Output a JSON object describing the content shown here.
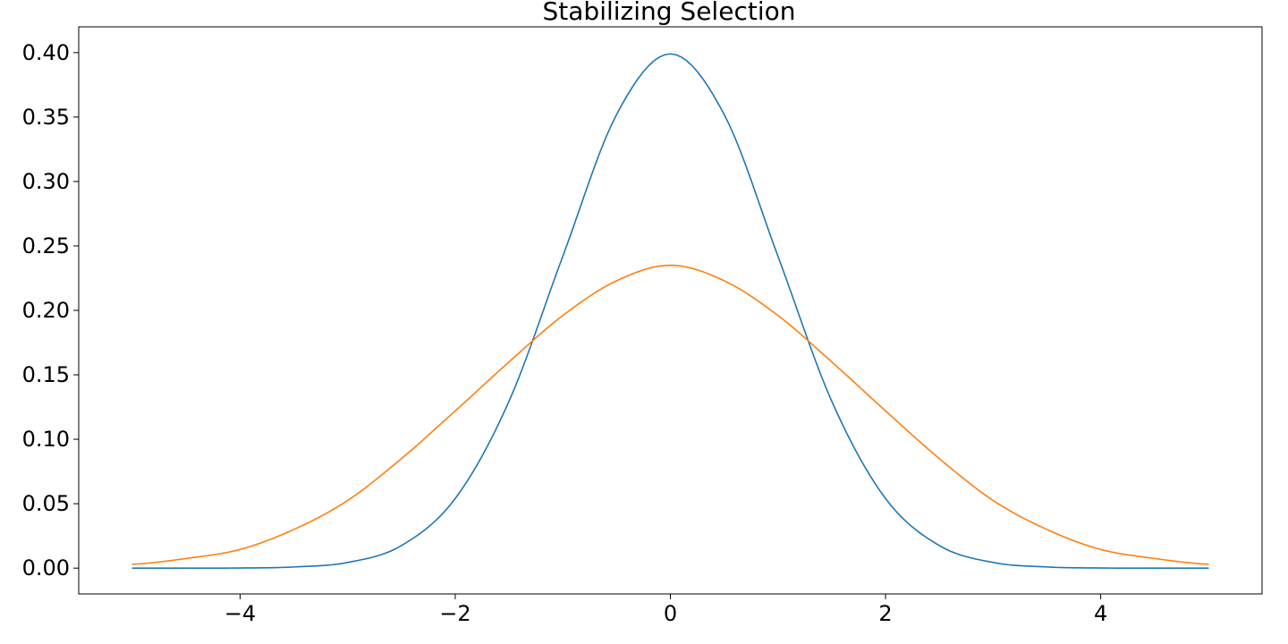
{
  "chart_data": {
    "type": "line",
    "title": "Stabilizing Selection",
    "xlabel": "",
    "ylabel": "",
    "xlim": [
      -5.5,
      5.5
    ],
    "ylim": [
      -0.02,
      0.42
    ],
    "grid": false,
    "x_ticks": [
      -4,
      -2,
      0,
      2,
      4
    ],
    "x_tick_labels": [
      "−4",
      "−2",
      "0",
      "2",
      "4"
    ],
    "y_ticks": [
      0.0,
      0.05,
      0.1,
      0.15,
      0.2,
      0.25,
      0.3,
      0.35,
      0.4
    ],
    "y_tick_labels": [
      "0.00",
      "0.05",
      "0.10",
      "0.15",
      "0.20",
      "0.25",
      "0.30",
      "0.35",
      "0.40"
    ],
    "x": [
      -5.0,
      -4.5,
      -4.0,
      -3.5,
      -3.0,
      -2.5,
      -2.0,
      -1.5,
      -1.0,
      -0.5,
      0.0,
      0.5,
      1.0,
      1.5,
      2.0,
      2.5,
      3.0,
      3.5,
      4.0,
      4.5,
      5.0
    ],
    "series": [
      {
        "color": "#1f77b4",
        "values": [
          0.0,
          0.0,
          0.0001,
          0.0009,
          0.0044,
          0.0175,
          0.054,
          0.1295,
          0.242,
          0.352,
          0.399,
          0.352,
          0.242,
          0.1295,
          0.054,
          0.0175,
          0.0044,
          0.0009,
          0.0001,
          0.0,
          0.0
        ]
      },
      {
        "color": "#ff7f0e",
        "values": [
          0.003,
          0.0075,
          0.0145,
          0.03,
          0.0525,
          0.085,
          0.122,
          0.16,
          0.196,
          0.223,
          0.235,
          0.223,
          0.196,
          0.16,
          0.122,
          0.085,
          0.0525,
          0.03,
          0.0145,
          0.0075,
          0.003
        ]
      }
    ]
  }
}
